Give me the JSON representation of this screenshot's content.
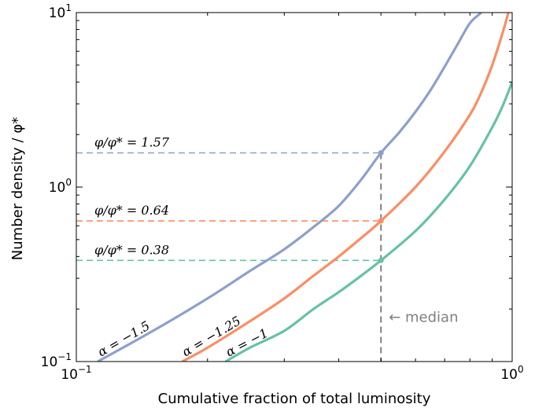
{
  "chart_data": {
    "type": "line",
    "xlabel": "Cumulative fraction of total luminosity",
    "ylabel": "Number density / φ*",
    "xscale": "log",
    "yscale": "log",
    "xlim": [
      0.1,
      1
    ],
    "ylim": [
      0.1,
      10
    ],
    "x_ticks": [
      {
        "value": 0.1,
        "base": "10",
        "exp": "−1"
      },
      {
        "value": 1,
        "base": "10",
        "exp": "0"
      }
    ],
    "y_ticks": [
      {
        "value": 0.1,
        "base": "10",
        "exp": "−1"
      },
      {
        "value": 1,
        "base": "10",
        "exp": "0"
      },
      {
        "value": 10,
        "base": "10",
        "exp": "1"
      }
    ],
    "grid": false,
    "median_x": 0.5,
    "median_label": "← median",
    "series": [
      {
        "name": "α = −1.5",
        "color": "#8da0cb",
        "x": [
          0.112,
          0.15,
          0.2,
          0.25,
          0.3,
          0.35,
          0.4,
          0.45,
          0.5,
          0.55,
          0.6,
          0.65,
          0.7,
          0.75,
          0.8,
          0.85
        ],
        "y": [
          0.1,
          0.15,
          0.23,
          0.33,
          0.44,
          0.59,
          0.78,
          1.1,
          1.57,
          2.05,
          2.7,
          3.6,
          4.9,
          6.6,
          8.7,
          10
        ]
      },
      {
        "name": "α = −1.25",
        "color": "#fc8d62",
        "x": [
          0.175,
          0.2,
          0.25,
          0.3,
          0.35,
          0.4,
          0.45,
          0.5,
          0.6,
          0.7,
          0.8,
          0.85,
          0.9,
          0.95,
          0.98
        ],
        "y": [
          0.1,
          0.12,
          0.17,
          0.23,
          0.31,
          0.4,
          0.51,
          0.64,
          1.0,
          1.6,
          2.6,
          3.5,
          5.0,
          7.6,
          10
        ]
      },
      {
        "name": "α = −1",
        "color": "#66c2a5",
        "x": [
          0.22,
          0.25,
          0.3,
          0.35,
          0.4,
          0.45,
          0.5,
          0.6,
          0.7,
          0.8,
          0.9,
          0.95,
          1.0
        ],
        "y": [
          0.1,
          0.12,
          0.15,
          0.2,
          0.25,
          0.31,
          0.38,
          0.56,
          0.85,
          1.32,
          2.2,
          2.9,
          4.0
        ]
      }
    ],
    "annotations": [
      {
        "text": "φ/φ* = 1.57",
        "y": 1.57,
        "color": "#8da0cb"
      },
      {
        "text": "φ/φ* = 0.64",
        "y": 0.64,
        "color": "#fc8d62"
      },
      {
        "text": "φ/φ* = 0.38",
        "y": 0.38,
        "color": "#66c2a5"
      }
    ]
  }
}
